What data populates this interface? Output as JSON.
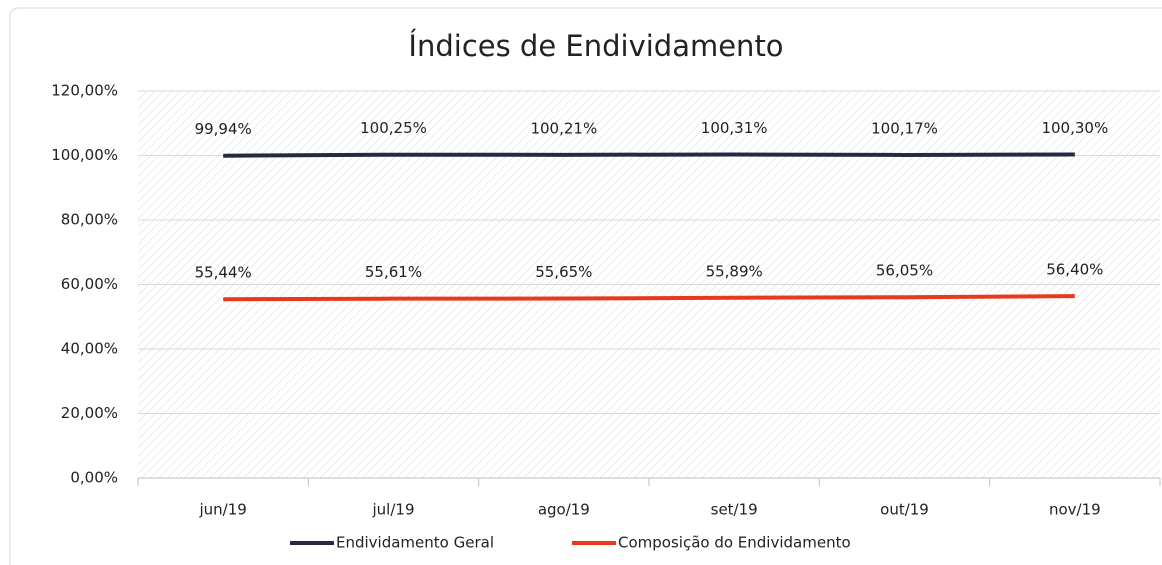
{
  "chart_data": {
    "type": "line",
    "title": "Índices de Endividamento",
    "categories": [
      "jun/19",
      "jul/19",
      "ago/19",
      "set/19",
      "out/19",
      "nov/19"
    ],
    "series": [
      {
        "name": "Endividamento Geral",
        "color": "#262a40",
        "values": [
          99.94,
          100.25,
          100.21,
          100.31,
          100.17,
          100.3
        ],
        "value_labels": [
          "99,94%",
          "100,25%",
          "100,21%",
          "100,31%",
          "100,17%",
          "100,30%"
        ]
      },
      {
        "name": "Composição do Endividamento",
        "color": "#e8391e",
        "values": [
          55.44,
          55.61,
          55.65,
          55.89,
          56.05,
          56.4
        ],
        "value_labels": [
          "55,44%",
          "55,61%",
          "55,65%",
          "55,89%",
          "56,05%",
          "56,40%"
        ]
      }
    ],
    "ylim": [
      0,
      120
    ],
    "yticks": [
      {
        "value": 0,
        "label": "0,00%"
      },
      {
        "value": 20,
        "label": "20,00%"
      },
      {
        "value": 40,
        "label": "40,00%"
      },
      {
        "value": 60,
        "label": "60,00%"
      },
      {
        "value": 80,
        "label": "80,00%"
      },
      {
        "value": 100,
        "label": "100,00%"
      },
      {
        "value": 120,
        "label": "120,00%"
      }
    ],
    "grid": true,
    "legend": "bottom"
  }
}
